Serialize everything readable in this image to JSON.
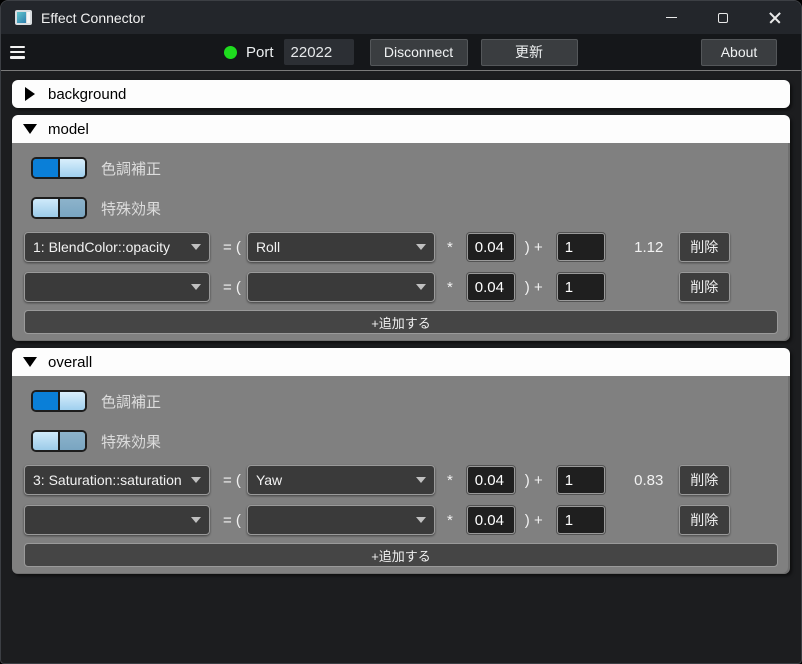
{
  "titlebar": {
    "title": "Effect Connector"
  },
  "toolbar": {
    "port_label": "Port",
    "port_value": "22022",
    "disconnect_label": "Disconnect",
    "update_label": "更新",
    "about_label": "About",
    "status_color": "#1edc1e"
  },
  "formula": {
    "equals_open": "= (",
    "multiply": "*",
    "close_plus": ") +"
  },
  "sections": {
    "background": {
      "title": "background",
      "collapsed": true
    },
    "model": {
      "title": "model",
      "collapsed": false,
      "toggles": [
        {
          "label": "色調補正",
          "on": true
        },
        {
          "label": "特殊効果",
          "on": false
        }
      ],
      "rows": [
        {
          "target": "1: BlendColor::opacity",
          "source": "Roll",
          "multiplier": "0.04",
          "offset": "1",
          "result": "1.12",
          "delete_label": "削除"
        },
        {
          "target": "",
          "source": "",
          "multiplier": "0.04",
          "offset": "1",
          "result": "",
          "delete_label": "削除"
        }
      ],
      "add_label": "+追加する"
    },
    "overall": {
      "title": "overall",
      "collapsed": false,
      "toggles": [
        {
          "label": "色調補正",
          "on": true
        },
        {
          "label": "特殊効果",
          "on": false
        }
      ],
      "rows": [
        {
          "target": "3: Saturation::saturation",
          "source": "Yaw",
          "multiplier": "0.04",
          "offset": "1",
          "result": "0.83",
          "delete_label": "削除"
        },
        {
          "target": "",
          "source": "",
          "multiplier": "0.04",
          "offset": "1",
          "result": "",
          "delete_label": "削除"
        }
      ],
      "add_label": "+追加する"
    }
  },
  "icons": {
    "app": "app-window-icon",
    "menu": "hamburger-icon",
    "status": "status-dot",
    "minimize": "minimize-icon",
    "maximize": "maximize-icon",
    "close": "close-icon",
    "expander": "triangle-expander-icon",
    "dropdown_arrow": "chevron-down-icon"
  },
  "colors": {
    "accent_blue": "#0a7fd8",
    "status_green": "#1edc1e",
    "section_gray": "#808080",
    "header_white": "#fdfdfd"
  }
}
